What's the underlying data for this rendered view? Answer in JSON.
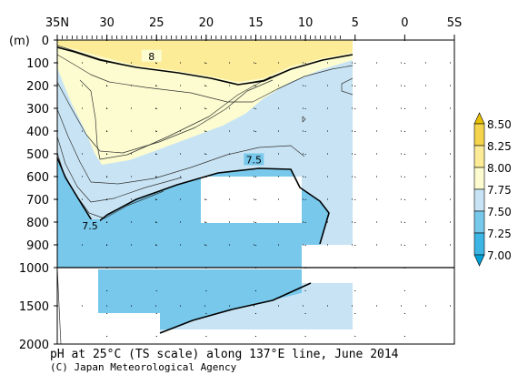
{
  "chart_data": {
    "type": "heatmap",
    "title": "pH at 25°C (TS scale) along 137°E line, June 2014",
    "credit": "(C) Japan Meteorological Agency",
    "y_unit_label": "(m)",
    "x_ticks": [
      "35N",
      "30",
      "25",
      "20",
      "15",
      "10",
      "5",
      "0",
      "5S"
    ],
    "x_tick_values": [
      35,
      30,
      25,
      20,
      15,
      10,
      5,
      0,
      -5
    ],
    "xlim": [
      35,
      -5
    ],
    "y_ticks_upper": [
      0,
      100,
      200,
      300,
      400,
      500,
      600,
      700,
      800,
      900,
      1000
    ],
    "y_ticks_lower": [
      1000,
      1500,
      2000
    ],
    "ylim": [
      0,
      2000
    ],
    "y_break": 1000,
    "station_latitudes": [
      34.5,
      34,
      33.5,
      33,
      32.5,
      32,
      31.5,
      31,
      30.5,
      30,
      29.5,
      29,
      28.5,
      28,
      27.5,
      27,
      26.5,
      26,
      25.5,
      25,
      24.5,
      24,
      23.5,
      23,
      22.5,
      22,
      21.5,
      21,
      20.5,
      20,
      19.5,
      19,
      18.5,
      18,
      17.5,
      17,
      16.5,
      16,
      15.5,
      15,
      14.5,
      14,
      13.5,
      13,
      12.5,
      12,
      11.5,
      11,
      10.5,
      10,
      9.5,
      9,
      8.5,
      8,
      7.5,
      7,
      6.5
    ],
    "contour_labels": [
      {
        "label": "8",
        "lat": 25.5,
        "depth": 75
      },
      {
        "label": "7.5",
        "lat": 15.2,
        "depth": 530
      },
      {
        "label": "7.5",
        "lat": 31.7,
        "depth": 820
      }
    ],
    "colorbar": {
      "levels": [
        7.0,
        7.25,
        7.5,
        7.75,
        8.0,
        8.25,
        8.5
      ],
      "labels": [
        "8.50",
        "8.25",
        "8.00",
        "7.75",
        "7.50",
        "7.25",
        "7.00"
      ],
      "colors": [
        "#00a0d8",
        "#3cb4e4",
        "#78c8ec",
        "#c8e4f4",
        "#fcfcd0",
        "#fcec98",
        "#f4d44c",
        "#e8c000"
      ]
    },
    "bands": [
      {
        "range": "7.50-7.75",
        "color": "#78c8ec"
      },
      {
        "range": "7.75-8.00",
        "color": "#c8e4f4"
      },
      {
        "range": "8.00-8.25",
        "color": "#fcfcd0"
      },
      {
        "range": "8.25-8.50",
        "color": "#fcec98"
      }
    ],
    "grid": "dotted"
  }
}
